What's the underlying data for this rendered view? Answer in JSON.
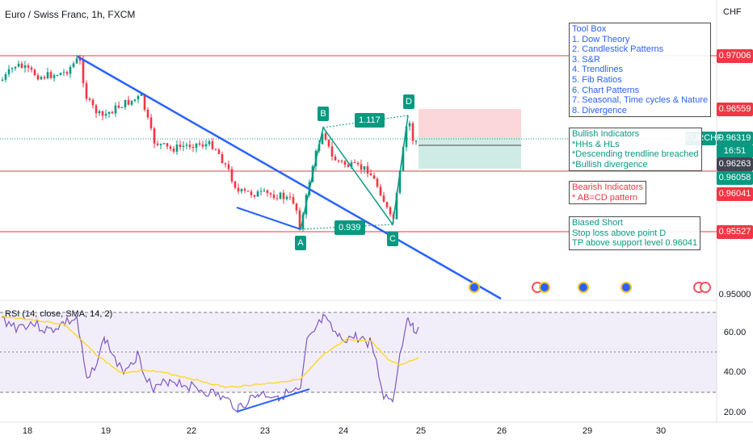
{
  "header": {
    "title": "Euro / Swiss Franc, 1h, FXCM",
    "currency": "CHF"
  },
  "price_axis": {
    "ticks": [
      "0.97006",
      "0.96559",
      "0.96319",
      "0.96263",
      "0.96058",
      "0.96041",
      "0.95527",
      "0.95000"
    ],
    "tick_colors": [
      "#f23645",
      "#f23645",
      "#089981",
      "#434651",
      "#089981",
      "#f23645",
      "#f23645",
      "transparent"
    ],
    "symbol_tag": "EURCHF",
    "countdown": "16:51"
  },
  "rsi_axis": {
    "ticks": [
      "60.00",
      "40.00",
      "20.00"
    ]
  },
  "rsi": {
    "title": "RSI (14, close, SMA, 14, 2)"
  },
  "time_axis": {
    "labels": [
      "18",
      "19",
      "22",
      "23",
      "24",
      "25",
      "26",
      "29",
      "30"
    ]
  },
  "colors": {
    "up": "#089981",
    "down": "#f23645",
    "trend": "#2962ff",
    "rsi": "#7e57c2",
    "rsi_ma": "#fdd835"
  },
  "pattern": {
    "points": [
      "A",
      "B",
      "C",
      "D"
    ],
    "ratio_bc": "1.117",
    "ratio_ab": "0.939"
  },
  "toolbox": {
    "title": "Tool Box",
    "items": [
      "1. Dow Theory",
      "2. Candlestick Patterns",
      "3. S&R",
      "4. Trendlines",
      "5. Fib Ratios",
      "6. Chart Patterns",
      "7. Seasonal, Time cycles & Nature",
      "8. Divergence"
    ]
  },
  "bullish": {
    "title": "Bullish Indicators",
    "items": [
      "*HHs & HLs",
      "*Descending trendline breached",
      "*Bullish divergence"
    ]
  },
  "bearish": {
    "title": "Bearish Indicators",
    "items": [
      "* AB=CD pattern"
    ]
  },
  "bias": {
    "title": "Biased Short",
    "items": [
      "Stop loss above point D",
      "TP above support level 0.96041"
    ]
  },
  "chart_data": {
    "type": "candlestick",
    "symbol": "EURCHF",
    "timeframe": "1h",
    "horizontal_levels": [
      0.97006,
      0.96559,
      0.96058,
      0.96041,
      0.95527
    ],
    "last_price": 0.96319,
    "pattern_points": [
      {
        "label": "A",
        "price": 0.9552
      },
      {
        "label": "B",
        "price": 0.964
      },
      {
        "label": "C",
        "price": 0.9553
      },
      {
        "label": "D",
        "price": 0.9655
      }
    ],
    "rsi_levels": [
      70,
      50,
      30
    ],
    "rsi_ylim": [
      18,
      78
    ],
    "price_ylim": [
      0.9496,
      0.9723
    ]
  }
}
